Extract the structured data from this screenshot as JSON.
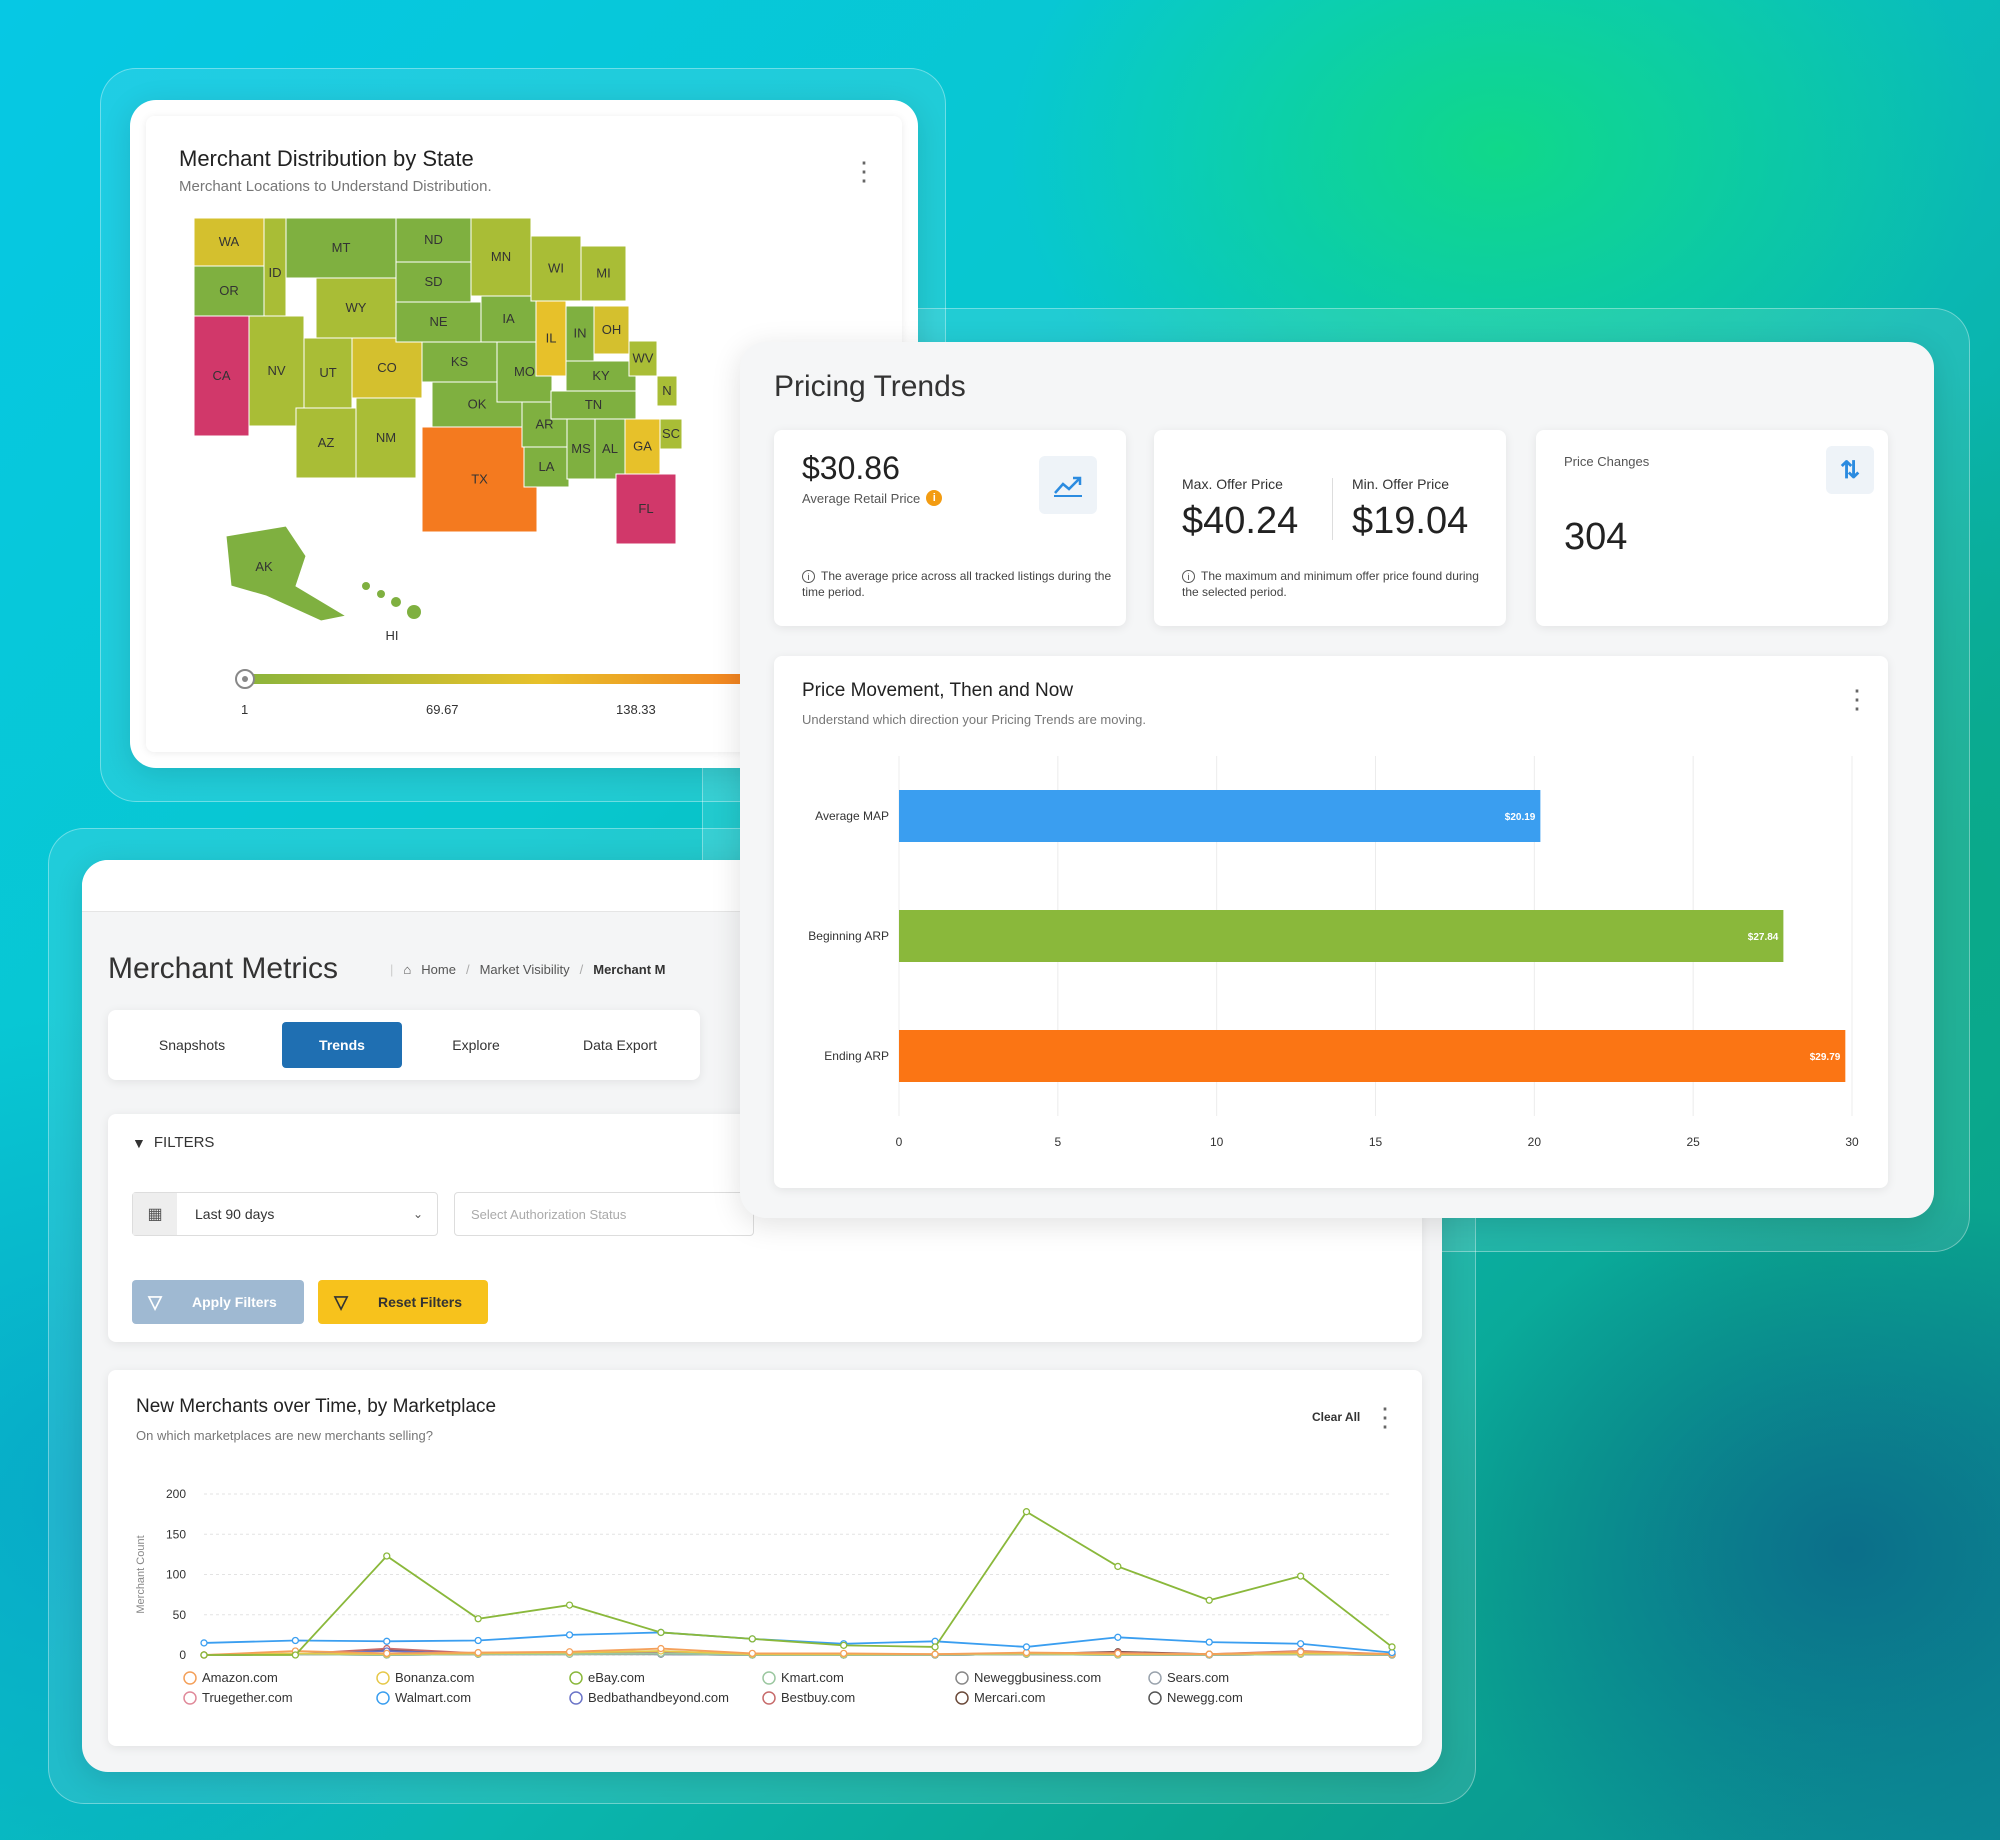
{
  "map_card": {
    "title": "Merchant Distribution by State",
    "subtitle": "Merchant Locations to Understand Distribution.",
    "states": [
      "WA",
      "OR",
      "CA",
      "ID",
      "MT",
      "WY",
      "NV",
      "UT",
      "CO",
      "AZ",
      "NM",
      "ND",
      "SD",
      "NE",
      "KS",
      "OK",
      "TX",
      "MN",
      "IA",
      "MO",
      "AR",
      "LA",
      "WI",
      "IL",
      "MI",
      "IN",
      "OH",
      "KY",
      "TN",
      "MS",
      "AL",
      "GA",
      "FL",
      "WV",
      "SC",
      "N",
      "AK",
      "HI"
    ],
    "scale_ticks": [
      "1",
      "69.67",
      "138.33"
    ],
    "colors": {
      "low": "#8ab43c",
      "mid": "#e7c12a",
      "high": "#f47a1f",
      "max": "#d1386a"
    }
  },
  "pricing": {
    "title": "Pricing Trends",
    "kpi1": {
      "value": "$30.86",
      "label": "Average Retail Price",
      "note": "The average price across all tracked listings during the time period."
    },
    "kpi2": {
      "max_label": "Max. Offer Price",
      "max_value": "$40.24",
      "min_label": "Min. Offer Price",
      "min_value": "$19.04",
      "note": "The maximum and minimum offer price found during the selected period."
    },
    "kpi3": {
      "label": "Price Changes",
      "value": "304"
    },
    "movement": {
      "title": "Price Movement, Then and Now",
      "subtitle": "Understand which direction your Pricing Trends are moving."
    }
  },
  "merchant_metrics": {
    "title": "Merchant Metrics",
    "breadcrumb": [
      "Home",
      "Market Visibility",
      "Merchant M"
    ],
    "tabs": [
      "Snapshots",
      "Trends",
      "Explore",
      "Data Export"
    ],
    "active_tab": "Trends",
    "filters_label": "FILTERS",
    "date_range": "Last 90 days",
    "auth_placeholder": "Select Authorization Status",
    "apply_label": "Apply Filters",
    "reset_label": "Reset Filters",
    "new_merchants": {
      "title": "New Merchants over Time, by Marketplace",
      "subtitle": "On which marketplaces are new merchants selling?",
      "clear_label": "Clear All"
    }
  },
  "chart_data": [
    {
      "type": "bar",
      "orientation": "horizontal",
      "title": "Price Movement, Then and Now",
      "categories": [
        "Average MAP",
        "Beginning ARP",
        "Ending ARP"
      ],
      "values": [
        20.19,
        27.84,
        29.79
      ],
      "data_labels": [
        "$20.19",
        "$27.84",
        "$29.79"
      ],
      "colors": [
        "#3a9ef0",
        "#8ab83b",
        "#fb7514"
      ],
      "xlim": [
        0,
        30
      ],
      "xticks": [
        "0",
        "5",
        "10",
        "15",
        "20",
        "25",
        "30"
      ],
      "grid": true
    },
    {
      "type": "line",
      "title": "New Merchants over Time, by Marketplace",
      "ylabel": "Merchant Count",
      "ylim": [
        0,
        200
      ],
      "yticks": [
        "200",
        "150",
        "100",
        "50",
        "0"
      ],
      "legend": "bottom",
      "grid": true,
      "series": [
        {
          "name": "eBay.com",
          "color": "#8ab83b",
          "values": [
            0,
            0,
            123,
            45,
            62,
            28,
            20,
            12,
            10,
            178,
            110,
            68,
            98,
            10
          ]
        },
        {
          "name": "Walmart.com",
          "color": "#3a9ef0",
          "values": [
            15,
            18,
            17,
            18,
            25,
            28,
            20,
            14,
            17,
            10,
            22,
            16,
            14,
            3
          ]
        },
        {
          "name": "Amazon.com",
          "color": "#f4a05a",
          "values": [
            0,
            5,
            2,
            3,
            4,
            8,
            2,
            2,
            1,
            3,
            2,
            1,
            4,
            1
          ]
        },
        {
          "name": "Bonanza.com",
          "color": "#e6c84a",
          "values": [
            0,
            2,
            1,
            2,
            3,
            5,
            1,
            1,
            1,
            2,
            1,
            1,
            2,
            1
          ]
        },
        {
          "name": "Kmart.com",
          "color": "#9bc7a0",
          "values": [
            0,
            1,
            0,
            1,
            1,
            2,
            0,
            0,
            0,
            1,
            0,
            0,
            1,
            0
          ]
        },
        {
          "name": "Neweggbusiness.com",
          "color": "#888888",
          "values": [
            0,
            1,
            0,
            1,
            1,
            2,
            0,
            0,
            0,
            1,
            0,
            0,
            1,
            0
          ]
        },
        {
          "name": "Sears.com",
          "color": "#9aa3ad",
          "values": [
            0,
            1,
            0,
            1,
            1,
            1,
            0,
            0,
            0,
            1,
            0,
            0,
            1,
            0
          ]
        },
        {
          "name": "Truegether.com",
          "color": "#e08a9a",
          "values": [
            0,
            2,
            0,
            1,
            1,
            2,
            1,
            0,
            0,
            1,
            1,
            0,
            1,
            0
          ]
        },
        {
          "name": "Bedbathandbeyond.com",
          "color": "#6b74c8",
          "values": [
            0,
            1,
            5,
            1,
            2,
            1,
            0,
            0,
            0,
            1,
            1,
            0,
            2,
            0
          ]
        },
        {
          "name": "Bestbuy.com",
          "color": "#c76b6b",
          "values": [
            0,
            1,
            8,
            2,
            3,
            4,
            1,
            1,
            0,
            2,
            3,
            1,
            5,
            1
          ]
        },
        {
          "name": "Mercari.com",
          "color": "#6b4a3a",
          "values": [
            0,
            1,
            6,
            1,
            2,
            3,
            1,
            0,
            0,
            1,
            4,
            1,
            2,
            0
          ]
        },
        {
          "name": "Newegg.com",
          "color": "#555555",
          "values": [
            0,
            1,
            1,
            1,
            1,
            1,
            0,
            0,
            0,
            1,
            1,
            0,
            1,
            0
          ]
        }
      ]
    }
  ]
}
